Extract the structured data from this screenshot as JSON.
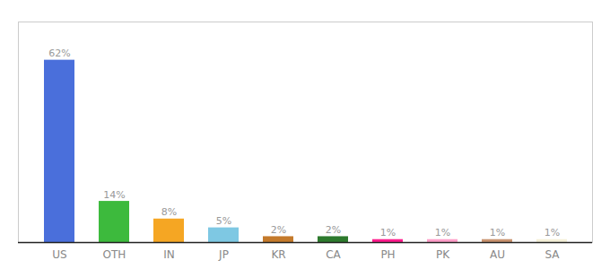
{
  "chart_data": {
    "type": "bar",
    "categories": [
      "US",
      "OTH",
      "IN",
      "JP",
      "KR",
      "CA",
      "PH",
      "PK",
      "AU",
      "SA"
    ],
    "values": [
      62,
      14,
      8,
      5,
      2,
      2,
      1,
      1,
      1,
      1
    ],
    "value_labels": [
      "62%",
      "14%",
      "8%",
      "5%",
      "2%",
      "2%",
      "1%",
      "1%",
      "1%",
      "1%"
    ],
    "colors": [
      "#4a6fdb",
      "#3dba3d",
      "#f5a623",
      "#7ec8e3",
      "#c47a2b",
      "#2d7a2d",
      "#ff1a8c",
      "#ff9ec8",
      "#c8926e",
      "#f5f0d8"
    ],
    "ylim": [
      0,
      75
    ],
    "data_labels": true,
    "tick_labels": "x"
  }
}
